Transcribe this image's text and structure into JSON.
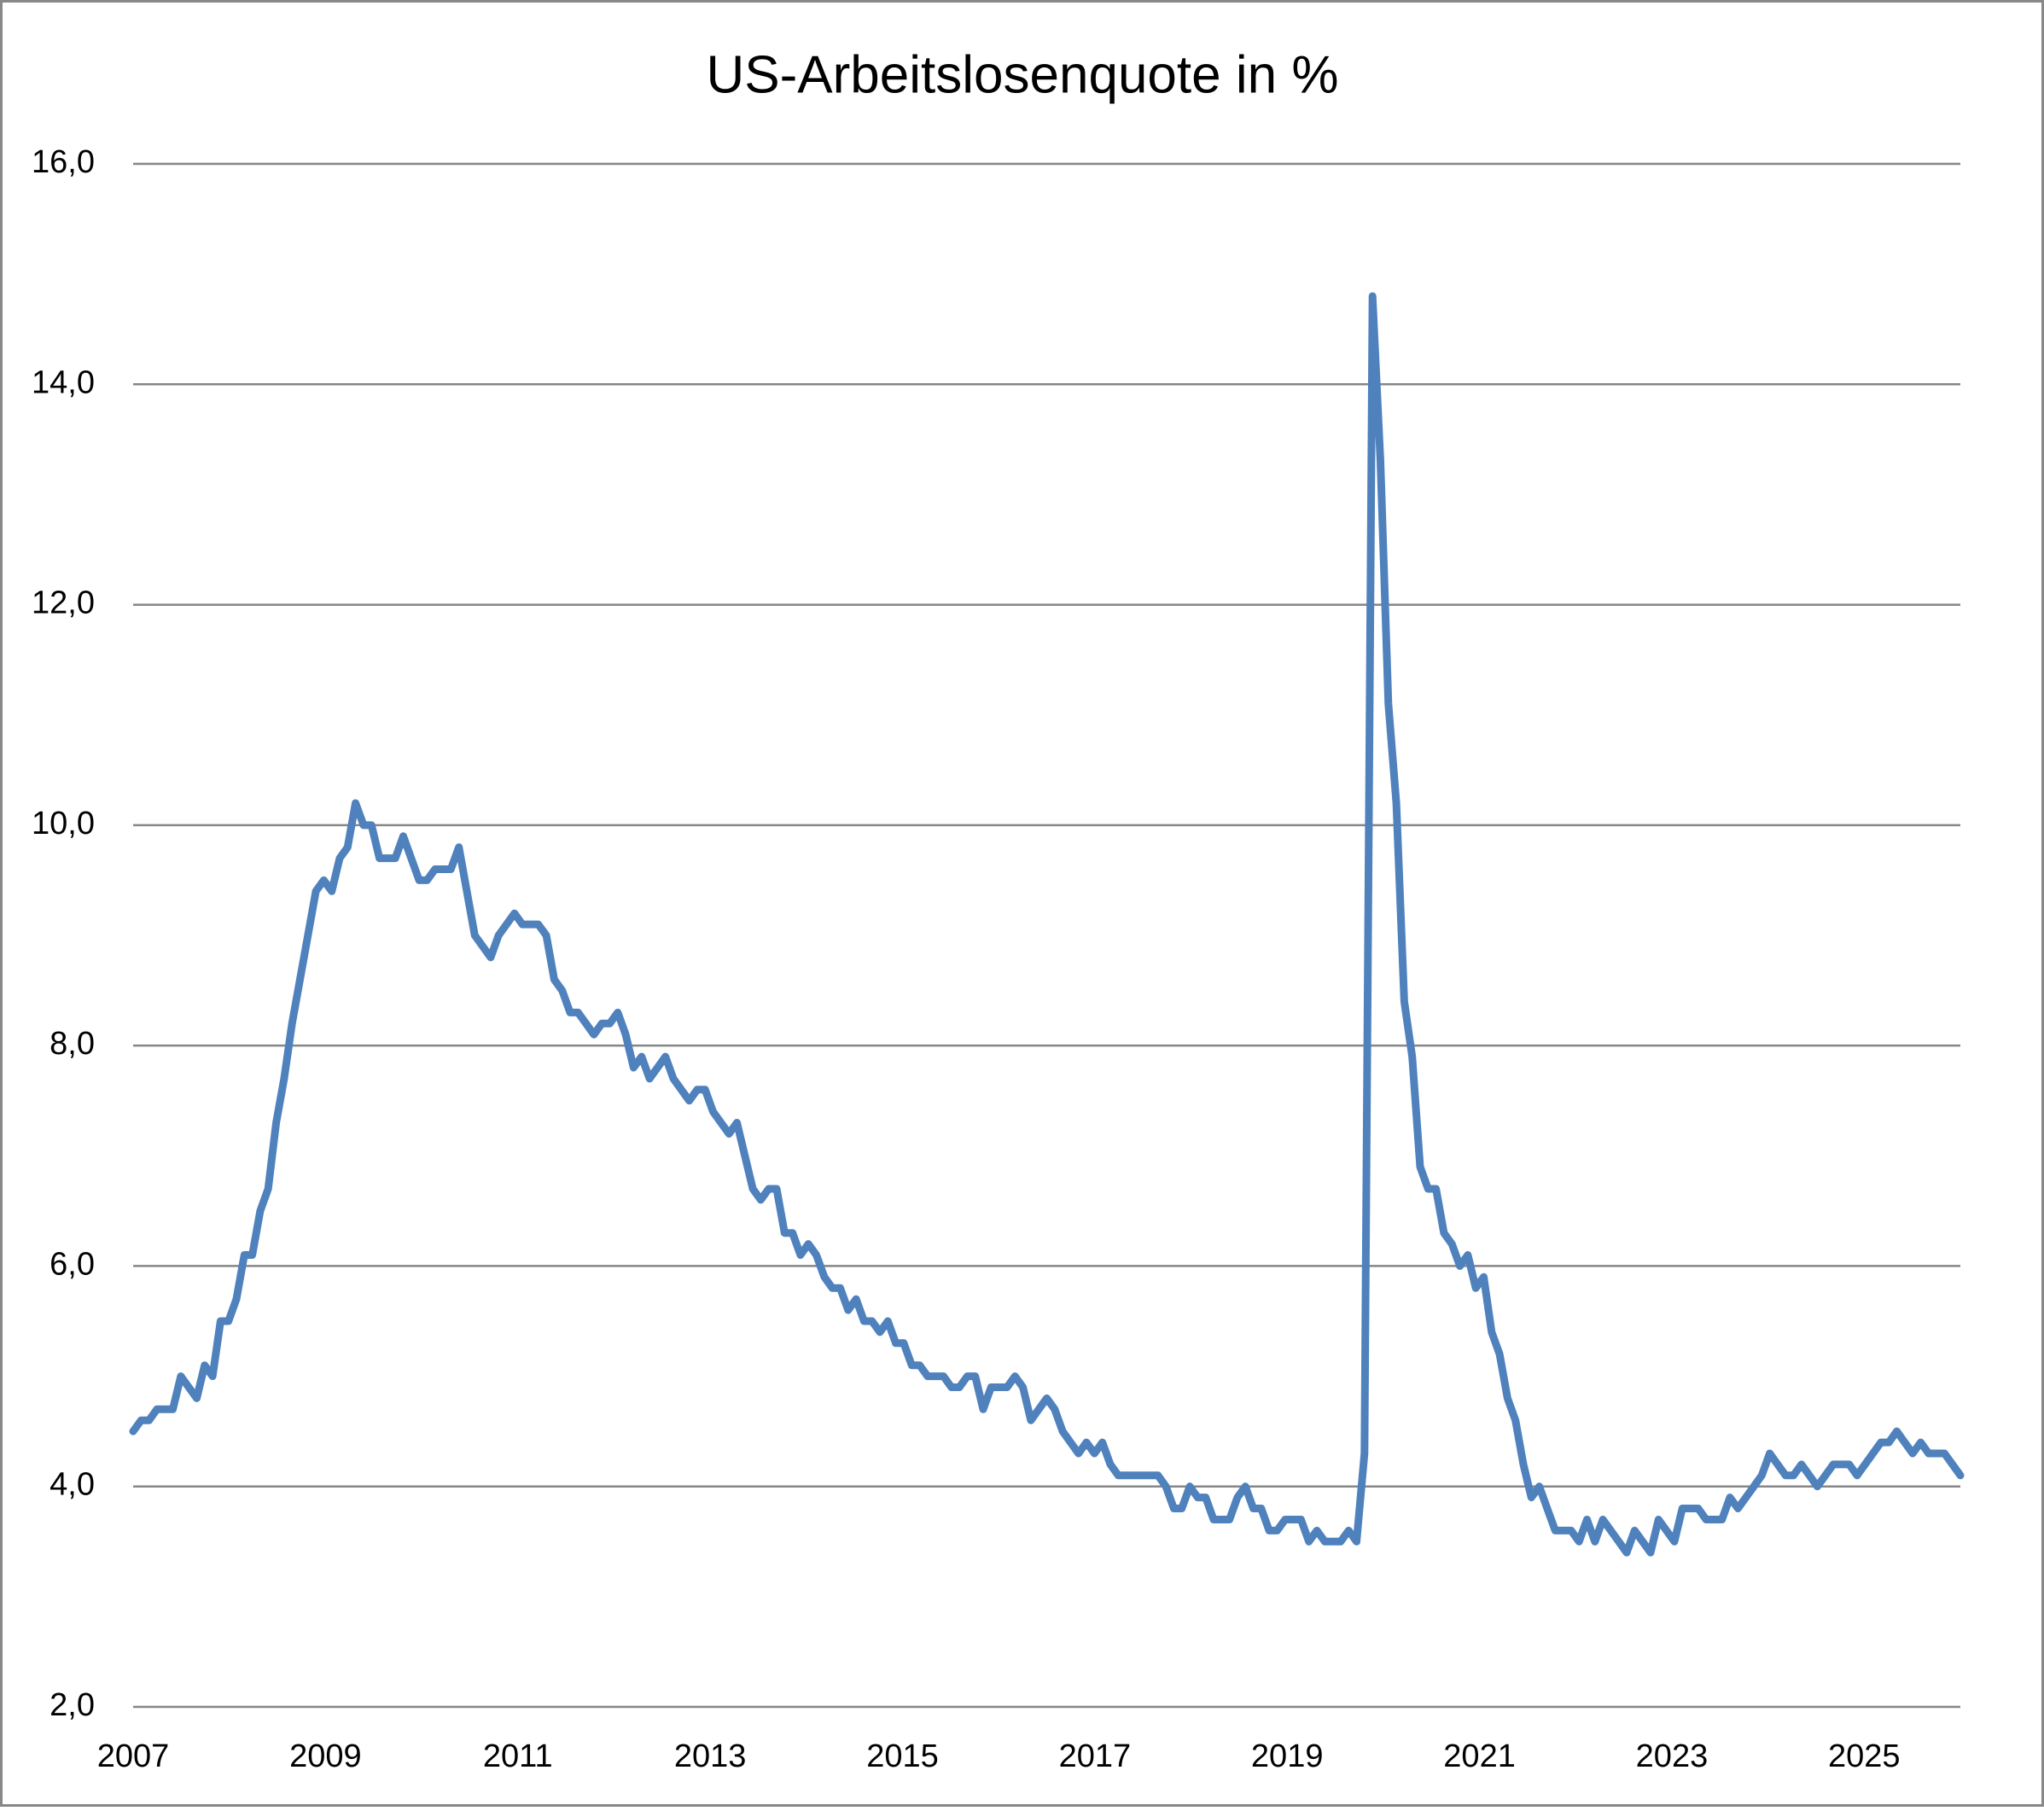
{
  "chart_data": {
    "type": "line",
    "title": "US-Arbeitslosenquote in %",
    "color": "#4f81bd",
    "xlim": [
      2007,
      2026
    ],
    "xticks": [
      2007,
      2009,
      2011,
      2013,
      2015,
      2017,
      2019,
      2021,
      2023,
      2025
    ],
    "ylim": [
      2,
      16
    ],
    "yticks": [
      {
        "value": 2,
        "label": "2,0"
      },
      {
        "value": 4,
        "label": "4,0"
      },
      {
        "value": 6,
        "label": "6,0"
      },
      {
        "value": 8,
        "label": "8,0"
      },
      {
        "value": 10,
        "label": "10,0"
      },
      {
        "value": 12,
        "label": "12,0"
      },
      {
        "value": 14,
        "label": "14,0"
      },
      {
        "value": 16,
        "label": "16,0"
      }
    ],
    "grid": true,
    "values": [
      4.5,
      4.6,
      4.6,
      4.7,
      4.7,
      4.7,
      5.0,
      4.9,
      4.8,
      5.1,
      5.0,
      5.5,
      5.5,
      5.7,
      6.1,
      6.1,
      6.5,
      6.7,
      7.3,
      7.7,
      8.2,
      8.6,
      9.0,
      9.4,
      9.5,
      9.4,
      9.7,
      9.8,
      10.2,
      10.0,
      10.0,
      9.7,
      9.7,
      9.7,
      9.9,
      9.7,
      9.5,
      9.5,
      9.6,
      9.6,
      9.6,
      9.8,
      9.4,
      9.0,
      8.9,
      8.8,
      9.0,
      9.1,
      9.2,
      9.1,
      9.1,
      9.1,
      9.0,
      8.6,
      8.5,
      8.3,
      8.3,
      8.2,
      8.1,
      8.2,
      8.2,
      8.3,
      8.1,
      7.8,
      7.9,
      7.7,
      7.8,
      7.9,
      7.7,
      7.6,
      7.5,
      7.6,
      7.6,
      7.4,
      7.3,
      7.2,
      7.3,
      7.0,
      6.7,
      6.6,
      6.7,
      6.7,
      6.3,
      6.3,
      6.1,
      6.2,
      6.1,
      5.9,
      5.8,
      5.8,
      5.6,
      5.7,
      5.5,
      5.5,
      5.4,
      5.5,
      5.3,
      5.3,
      5.1,
      5.1,
      5.0,
      5.0,
      5.0,
      4.9,
      4.9,
      5.0,
      5.0,
      4.7,
      4.9,
      4.9,
      4.9,
      5.0,
      4.9,
      4.6,
      4.7,
      4.8,
      4.7,
      4.5,
      4.4,
      4.3,
      4.4,
      4.3,
      4.4,
      4.2,
      4.1,
      4.1,
      4.1,
      4.1,
      4.1,
      4.1,
      4.0,
      3.8,
      3.8,
      4.0,
      3.9,
      3.9,
      3.7,
      3.7,
      3.7,
      3.9,
      4.0,
      3.8,
      3.8,
      3.6,
      3.6,
      3.7,
      3.7,
      3.7,
      3.5,
      3.6,
      3.5,
      3.5,
      3.5,
      3.6,
      3.5,
      4.3,
      14.8,
      13.3,
      11.1,
      10.2,
      8.4,
      7.9,
      6.9,
      6.7,
      6.7,
      6.3,
      6.2,
      6.0,
      6.1,
      5.8,
      5.9,
      5.4,
      5.2,
      4.8,
      4.6,
      4.2,
      3.9,
      4.0,
      3.8,
      3.6,
      3.6,
      3.6,
      3.5,
      3.7,
      3.5,
      3.7,
      3.6,
      3.5,
      3.4,
      3.6,
      3.5,
      3.4,
      3.7,
      3.6,
      3.5,
      3.8,
      3.8,
      3.8,
      3.7,
      3.7,
      3.7,
      3.9,
      3.8,
      3.9,
      4.0,
      4.1,
      4.3,
      4.2,
      4.1,
      4.1,
      4.2,
      4.1,
      4.0,
      4.1,
      4.2,
      4.2,
      4.2,
      4.1,
      4.2,
      4.3,
      4.4,
      4.4,
      4.5,
      4.4,
      4.3,
      4.4,
      4.3,
      4.3,
      4.3,
      4.2,
      4.1
    ]
  }
}
